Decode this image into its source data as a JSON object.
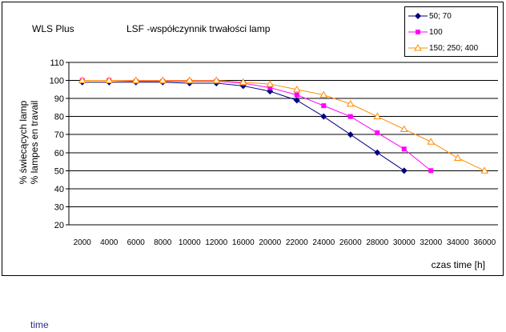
{
  "header": {
    "brand": "WLS  Plus",
    "title": "LSF -współczynnik trwałości lamp"
  },
  "footer_text": "time",
  "chart_data": {
    "type": "line",
    "title": "LSF -współczynnik trwałości lamp",
    "xlabel": "czas time [h]",
    "ylabel_lines": [
      "% świecących lamp",
      "% lampes en travail"
    ],
    "categories": [
      "2000",
      "4000",
      "6000",
      "8000",
      "10000",
      "12000",
      "16000",
      "20000",
      "22000",
      "24000",
      "26000",
      "28000",
      "30000",
      "32000",
      "34000",
      "36000"
    ],
    "ylim": [
      20,
      110
    ],
    "yticks": [
      20,
      30,
      40,
      50,
      60,
      70,
      80,
      90,
      100,
      110
    ],
    "grid": true,
    "legend_position": "top-right",
    "series": [
      {
        "name": "50; 70",
        "color": "#000080",
        "marker": "diamond",
        "values": [
          99,
          99,
          99,
          99,
          98.5,
          98.5,
          97,
          94,
          89,
          80,
          70,
          60,
          50,
          null,
          null,
          null
        ]
      },
      {
        "name": "100",
        "color": "#ff00ff",
        "marker": "square",
        "values": [
          100,
          100,
          99.5,
          99.5,
          99.5,
          99.5,
          98.5,
          96,
          92,
          86,
          80,
          71,
          62,
          50,
          null,
          null
        ]
      },
      {
        "name": "150; 250; 400",
        "color": "#ff8c00",
        "marker": "triangle",
        "values": [
          100,
          100,
          100,
          100,
          100,
          100,
          99,
          98,
          95,
          92,
          87,
          80,
          73,
          66,
          57,
          50
        ]
      }
    ]
  }
}
